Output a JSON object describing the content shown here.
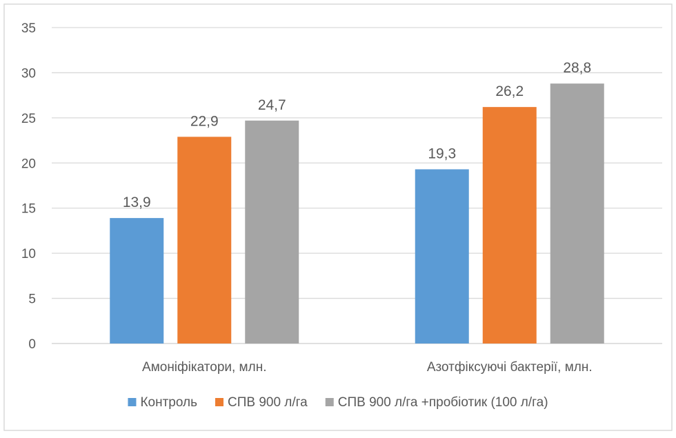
{
  "chart_data": {
    "type": "bar",
    "categories": [
      "Амоніфікатори, млн.",
      "Азотфіксуючі бактерії, млн."
    ],
    "series": [
      {
        "name": "Контроль",
        "values": [
          13.9,
          19.3
        ],
        "color": "#5b9bd5"
      },
      {
        "name": "СПВ 900 л/га",
        "values": [
          22.9,
          26.2
        ],
        "color": "#ed7d31"
      },
      {
        "name": "СПВ 900 л/га +пробіотик (100 л/га)",
        "values": [
          24.7,
          28.8
        ],
        "color": "#a5a5a5"
      }
    ],
    "data_labels": [
      [
        "13,9",
        "19,3"
      ],
      [
        "22,9",
        "26,2"
      ],
      [
        "24,7",
        "28,8"
      ]
    ],
    "y_ticks": [
      0,
      5,
      10,
      15,
      20,
      25,
      30,
      35
    ],
    "y_tick_labels": [
      "0",
      "5",
      "10",
      "15",
      "20",
      "25",
      "30",
      "35"
    ],
    "ylim": [
      0,
      35
    ],
    "grid": true,
    "legend_position": "bottom",
    "title": "",
    "xlabel": "",
    "ylabel": ""
  }
}
